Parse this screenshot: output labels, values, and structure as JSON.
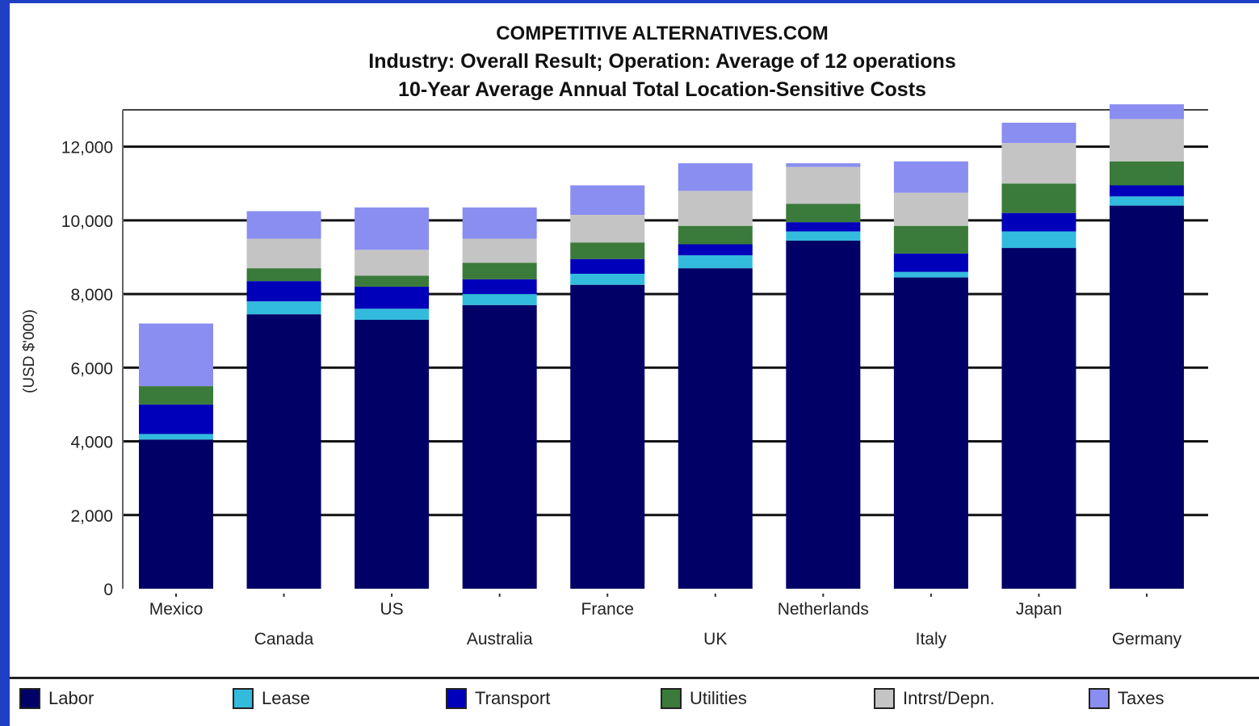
{
  "chart_data": {
    "type": "bar",
    "stacked": true,
    "title": "COMPETITIVE ALTERNATIVES.COM",
    "subtitle": "Industry: Overall Result; Operation: Average of 12 operations",
    "subtitle2": "10-Year Average Annual Total Location-Sensitive Costs",
    "xlabel": "",
    "ylabel": "(USD $'000)",
    "ylim": [
      0,
      13000
    ],
    "yticks": [
      "0",
      "2,000",
      "4,000",
      "6,000",
      "8,000",
      "10,000",
      "12,000"
    ],
    "grid": true,
    "legend_position": "bottom",
    "categories": [
      "Mexico",
      "Canada",
      "US",
      "Australia",
      "France",
      "UK",
      "Netherlands",
      "Italy",
      "Japan",
      "Germany"
    ],
    "series": [
      {
        "name": "Labor",
        "color": "#000066",
        "values": [
          4050,
          7450,
          7300,
          7700,
          8250,
          8700,
          9450,
          8450,
          9250,
          10400
        ]
      },
      {
        "name": "Lease",
        "color": "#33bbdd",
        "values": [
          150,
          350,
          300,
          300,
          300,
          350,
          250,
          150,
          450,
          250
        ]
      },
      {
        "name": "Transport",
        "color": "#0000bb",
        "values": [
          800,
          550,
          600,
          400,
          400,
          300,
          250,
          500,
          500,
          300
        ]
      },
      {
        "name": "Utilities",
        "color": "#3a7a3a",
        "values": [
          500,
          350,
          300,
          450,
          450,
          500,
          500,
          750,
          800,
          650
        ]
      },
      {
        "name": "Intrst/Depn.",
        "color": "#c4c4c4",
        "values": [
          0,
          800,
          700,
          650,
          750,
          950,
          1000,
          900,
          1100,
          1150
        ]
      },
      {
        "name": "Taxes",
        "color": "#8a8ef0",
        "values": [
          1700,
          750,
          1150,
          850,
          800,
          750,
          100,
          850,
          550,
          400
        ]
      }
    ]
  }
}
